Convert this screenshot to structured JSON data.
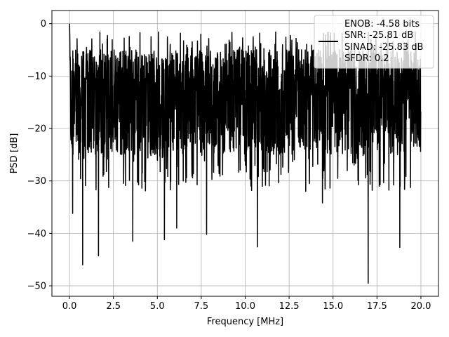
{
  "chart_data": {
    "type": "line",
    "title": "",
    "xlabel": "Frequency [MHz]",
    "ylabel": "PSD [dB]",
    "xlim": [
      -1.0,
      21.0
    ],
    "ylim": [
      -52.0,
      2.5
    ],
    "xticks": [
      0.0,
      2.5,
      5.0,
      7.5,
      10.0,
      12.5,
      15.0,
      17.5,
      20.0
    ],
    "xtick_labels": [
      "0.0",
      "2.5",
      "5.0",
      "7.5",
      "10.0",
      "12.5",
      "15.0",
      "17.5",
      "20.0"
    ],
    "yticks": [
      0,
      -10,
      -20,
      -30,
      -40,
      -50
    ],
    "ytick_labels": [
      "0",
      "−10",
      "−20",
      "−30",
      "−40",
      "−50"
    ],
    "grid": true,
    "legend_position": "top-right",
    "legend_lines": [
      "ENOB: -4.58 bits",
      "SNR: -25.81 dB",
      "SINAD: -25.83 dB",
      "SFDR: 0.2"
    ],
    "series": [
      {
        "color": "#000000",
        "x_range": [
          0.0,
          20.0
        ],
        "num_points": 2000,
        "peak": {
          "x": 0.0,
          "y": 0.0
        },
        "typical_upper_envelope": -5,
        "typical_lower_envelope": -25,
        "notable_dips": [
          {
            "x": 0.18,
            "y": -36.2
          },
          {
            "x": 0.75,
            "y": -46.0
          },
          {
            "x": 1.65,
            "y": -44.3
          },
          {
            "x": 3.6,
            "y": -41.5
          },
          {
            "x": 5.4,
            "y": -41.2
          },
          {
            "x": 6.1,
            "y": -39.0
          },
          {
            "x": 7.8,
            "y": -40.2
          },
          {
            "x": 10.7,
            "y": -42.6
          },
          {
            "x": 14.4,
            "y": -34.2
          },
          {
            "x": 17.0,
            "y": -49.5
          },
          {
            "x": 18.8,
            "y": -42.7
          }
        ]
      }
    ]
  }
}
